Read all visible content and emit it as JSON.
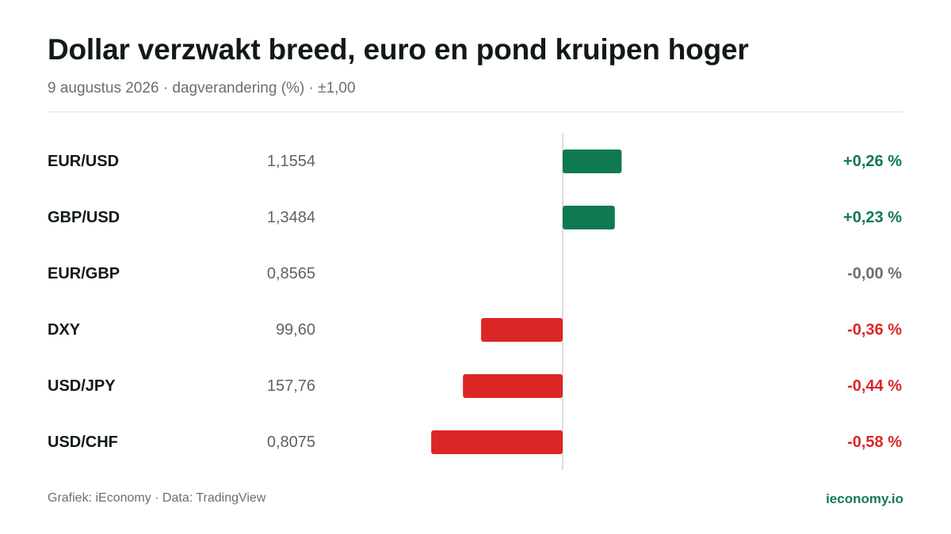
{
  "header": {
    "title": "Dollar verzwakt breed, euro en pond kruipen hoger",
    "subtitle": "9 augustus 2026 · dagverandering (%) · ±1,00"
  },
  "footer": {
    "credit": "Grafiek: iEconomy · Data: TradingView",
    "brand": "ieconomy.io"
  },
  "colors": {
    "positive": "#0f7a50",
    "negative": "#dc2626",
    "neutral": "#6b6f6d",
    "axis": "#dcdedd"
  },
  "chart_data": {
    "type": "bar",
    "orientation": "horizontal",
    "xlim": [
      -1.0,
      1.0
    ],
    "grid": false,
    "rows": [
      {
        "label": "EUR/USD",
        "price": "1,1554",
        "value": 0.26,
        "value_label": "+0,26 %"
      },
      {
        "label": "GBP/USD",
        "price": "1,3484",
        "value": 0.23,
        "value_label": "+0,23 %"
      },
      {
        "label": "EUR/GBP",
        "price": "0,8565",
        "value": 0.0,
        "value_label": "-0,00 %"
      },
      {
        "label": "DXY",
        "price": "99,60",
        "value": -0.36,
        "value_label": "-0,36 %"
      },
      {
        "label": "USD/JPY",
        "price": "157,76",
        "value": -0.44,
        "value_label": "-0,44 %"
      },
      {
        "label": "USD/CHF",
        "price": "0,8075",
        "value": -0.58,
        "value_label": "-0,58 %"
      }
    ]
  }
}
